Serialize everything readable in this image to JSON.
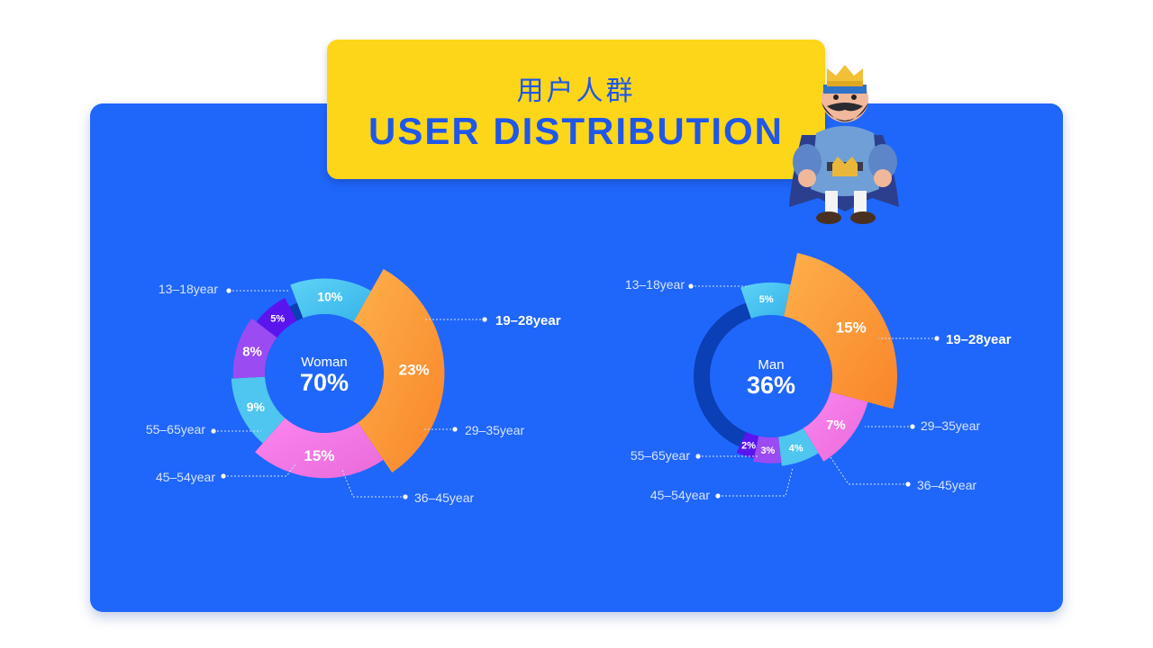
{
  "header": {
    "title_cn": "用户人群",
    "title_en": "USER DISTRIBUTION"
  },
  "mascot": {
    "icon": "king-character-icon"
  },
  "colors": {
    "panel": "#1f66fb",
    "title_card": "#fdd61a",
    "title_text": "#1f57e8",
    "ring_track": "#0a3fb5",
    "seg_13_18": "#3cc3ef",
    "seg_19_28": "#fd9a36",
    "seg_29_35": "#f57ce8",
    "seg_36_45": "#4ec6f0",
    "seg_45_54": "#9b4bf2",
    "seg_55_65": "#5a15ef"
  },
  "chart_data": [
    {
      "type": "pie",
      "center_label": "Woman",
      "center_value": "70%",
      "segments": [
        {
          "label": "13–18year",
          "value": 10,
          "value_label": "10%"
        },
        {
          "label": "19–28year",
          "value": 23,
          "value_label": "23%"
        },
        {
          "label": "29–35year",
          "value": 15,
          "value_label": "15%"
        },
        {
          "label": "36–45year",
          "value": 9,
          "value_label": "9%"
        },
        {
          "label": "45–54year",
          "value": 8,
          "value_label": "8%"
        },
        {
          "label": "55–65year",
          "value": 5,
          "value_label": "5%"
        }
      ]
    },
    {
      "type": "pie",
      "center_label": "Man",
      "center_value": "36%",
      "segments": [
        {
          "label": "13–18year",
          "value": 5,
          "value_label": "5%"
        },
        {
          "label": "19–28year",
          "value": 15,
          "value_label": "15%"
        },
        {
          "label": "29–35year",
          "value": 7,
          "value_label": "7%"
        },
        {
          "label": "36–45year",
          "value": 4,
          "value_label": "4%"
        },
        {
          "label": "45–54year",
          "value": 3,
          "value_label": "3%"
        },
        {
          "label": "55–65year",
          "value": 2,
          "value_label": "2%"
        }
      ]
    }
  ]
}
